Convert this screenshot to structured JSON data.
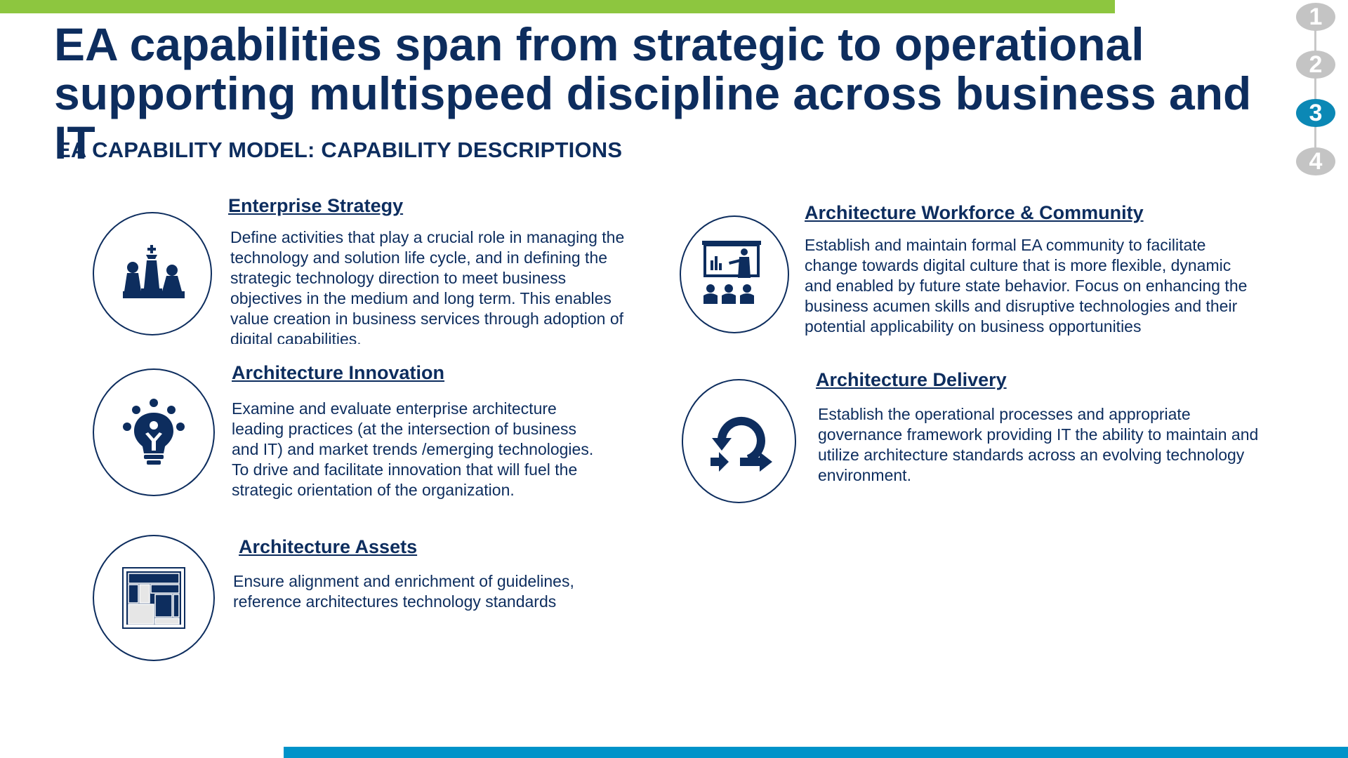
{
  "title": "EA capabilities span from strategic to operational supporting multispeed discipline across business and IT",
  "subtitle": "EA CAPABILITY MODEL: CAPABILITY DESCRIPTIONS",
  "steps": [
    {
      "label": "1",
      "active": false
    },
    {
      "label": "2",
      "active": false
    },
    {
      "label": "3",
      "active": true
    },
    {
      "label": "4",
      "active": false
    }
  ],
  "capabilities": {
    "enterprise_strategy": {
      "title": "Enterprise Strategy",
      "description": "Define activities that play a crucial role in managing the technology and solution life cycle, and in defining the strategic technology direction to meet business objectives in the medium and long term. This enables value creation in business services through adoption of digital capabilities.",
      "icon": "chess-pieces-icon"
    },
    "architecture_innovation": {
      "title": "Architecture Innovation",
      "description": "Examine and evaluate enterprise architecture leading practices (at the intersection of business and IT) and market trends /emerging technologies.  To drive and facilitate innovation that will fuel the strategic orientation of the organization.",
      "icon": "lightbulb-icon"
    },
    "architecture_assets": {
      "title": "Architecture Assets",
      "description": "Ensure alignment and enrichment of guidelines, reference architectures technology standards",
      "icon": "layout-blocks-icon"
    },
    "architecture_workforce": {
      "title": "Architecture Workforce & Community",
      "description": "Establish and maintain formal EA community to facilitate change towards digital culture that is more flexible, dynamic and enabled by future state behavior. Focus on enhancing the business acumen skills and disruptive technologies and their potential applicability on business opportunities",
      "icon": "presentation-audience-icon"
    },
    "architecture_delivery": {
      "title": "Architecture Delivery",
      "description": "Establish the operational processes and appropriate governance framework providing IT the ability to maintain and utilize architecture standards across an evolving technology environment.",
      "icon": "cycle-arrows-icon"
    }
  },
  "colors": {
    "navy": "#0d2d5e",
    "green_bar": "#8dc63f",
    "blue_bar": "#0093c9",
    "step_active": "#0b88b5",
    "step_inactive": "#c4c4c4"
  }
}
